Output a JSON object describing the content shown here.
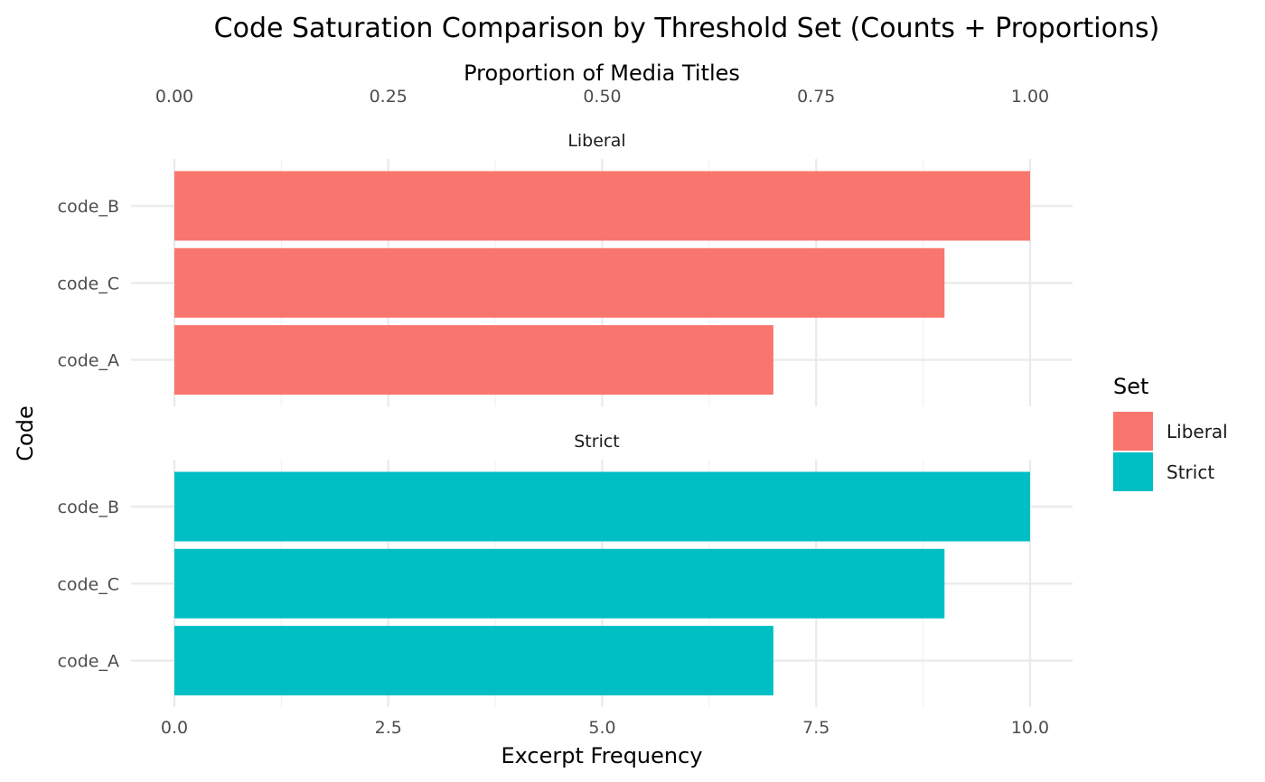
{
  "chart_data": {
    "type": "bar",
    "orientation": "horizontal",
    "title": "Code Saturation Comparison by Threshold Set (Counts + Proportions)",
    "xlabel": "Excerpt Frequency",
    "x2label": "Proportion of Media Titles",
    "ylabel": "Code",
    "xlim": [
      0,
      10
    ],
    "xticks": [
      "0.0",
      "2.5",
      "5.0",
      "7.5",
      "10.0"
    ],
    "x2ticks": [
      "0.00",
      "0.25",
      "0.50",
      "0.75",
      "1.00"
    ],
    "categories": [
      "code_B",
      "code_C",
      "code_A"
    ],
    "grid": true,
    "legend_position": "right",
    "legend_title": "Set",
    "panels": [
      {
        "name": "Liberal",
        "color": "#F8766D",
        "values": [
          10,
          9,
          7
        ]
      },
      {
        "name": "Strict",
        "color": "#00BFC4",
        "values": [
          10,
          9,
          7
        ]
      }
    ]
  }
}
